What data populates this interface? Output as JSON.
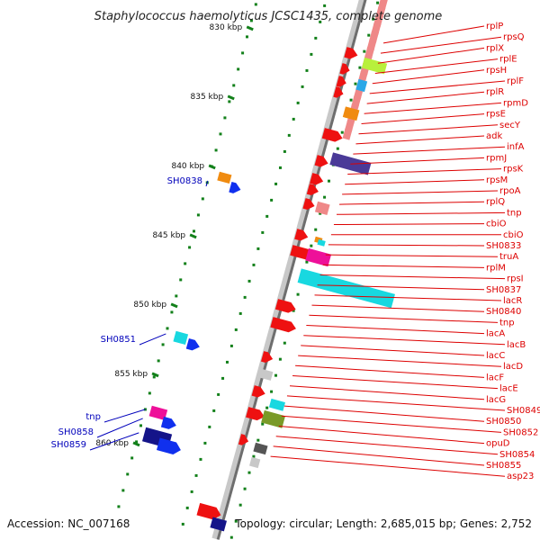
{
  "title": "Staphylococcus haemolyticus JCSC1435, complete genome",
  "accession": "Accession: NC_007168",
  "topology": "Topology: circular; Length: 2,685,015 bp; Genes: 2,752",
  "colors": {
    "red": "#ee1111",
    "pink": "#ef8888",
    "blue": "#1030ee",
    "navy": "#141489",
    "orange": "#f08b10",
    "cyan": "#18d8e0",
    "magenta": "#ee1099",
    "green": "#12801a",
    "label_red": "#dd0000",
    "label_blue": "#0000bb",
    "grey": "#888888"
  },
  "scale_ticks": [
    "830 kbp",
    "835 kbp",
    "840 kbp",
    "845 kbp",
    "850 kbp",
    "855 kbp",
    "860 kbp"
  ],
  "right_labels": [
    "rplP",
    "rpsQ",
    "rplX",
    "rplE",
    "rpsH",
    "rplF",
    "rplR",
    "rpmD",
    "rpsE",
    "secY",
    "adk",
    "infA",
    "rpmJ",
    "rpsK",
    "rpsM",
    "rpoA",
    "rplQ",
    "tnp",
    "cbiO",
    "cbiO",
    "SH0833",
    "truA",
    "rplM",
    "rpsI",
    "SH0837",
    "lacR",
    "SH0840",
    "tnp",
    "lacA",
    "lacB",
    "lacC",
    "lacD",
    "lacF",
    "lacE",
    "lacG",
    "SH0849",
    "SH0850",
    "SH0852",
    "opuD",
    "SH0854",
    "SH0855",
    "asp23"
  ],
  "left_labels": [
    "SH0838",
    "SH0851",
    "tnp",
    "SH0858",
    "SH0859"
  ]
}
